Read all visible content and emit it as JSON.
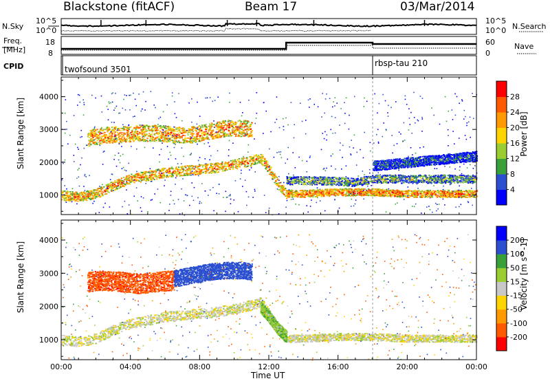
{
  "header": {
    "station": "Blackstone (fitACF)",
    "beam": "Beam 17",
    "date": "03/Mar/2014"
  },
  "top_strip": {
    "left_label": "N.Sky",
    "left_ticks": [
      "10^5",
      "10^0"
    ],
    "right_label": "N.Search",
    "right_ticks": [
      "10^5",
      "10^0"
    ]
  },
  "freq_strip": {
    "left_label_1": "Freq.",
    "left_label_2": "[MHz]",
    "left_ticks": [
      "18",
      "8"
    ],
    "right_label": "Nave",
    "right_ticks": [
      "60",
      "0"
    ]
  },
  "cpid": {
    "label": "CPID",
    "modes": [
      "twofsound 3501",
      "rbsp-tau 210"
    ]
  },
  "chart_data": [
    {
      "type": "heatmap",
      "panel": "power",
      "title": "",
      "ylabel": "Slant Range [km]",
      "ylim": [
        400,
        4600
      ],
      "yticks": [
        "1000",
        "2000",
        "3000",
        "4000"
      ],
      "xlim": [
        "00:00",
        "24:00"
      ],
      "colorbar_label": "Power [dB]",
      "colorbar_ticks": [
        "4",
        "8",
        "12",
        "16",
        "20",
        "24",
        "28"
      ],
      "colorbar_range": [
        0,
        32
      ],
      "colorbar_colors": [
        "#0000ff",
        "#2b4fd0",
        "#3aa03a",
        "#9acd32",
        "#ffd400",
        "#ff9a00",
        "#ff5a00",
        "#ff0000"
      ],
      "bands": [
        {
          "x": [
            0.0,
            1.0,
            2.0,
            3.0,
            4.0,
            5.0,
            6.0,
            7.0,
            8.0,
            9.0,
            10.0,
            11.0,
            11.5,
            12.0,
            12.5,
            13.0
          ],
          "y": [
            1000,
            950,
            1050,
            1300,
            1500,
            1600,
            1700,
            1750,
            1800,
            1850,
            1950,
            2050,
            2150,
            1800,
            1350,
            1050
          ],
          "width": 300,
          "value": 22
        },
        {
          "x": [
            13.0,
            14.0,
            16.0,
            18.0,
            20.0,
            22.0,
            24.0
          ],
          "y": [
            1050,
            1050,
            1100,
            1100,
            1050,
            1050,
            1050
          ],
          "width": 220,
          "value": 24
        },
        {
          "x": [
            1.5,
            2.5,
            3.5,
            4.5,
            5.5,
            6.5,
            7.5,
            8.5,
            9.5,
            10.5,
            11.0
          ],
          "y": [
            2750,
            2850,
            2850,
            2900,
            2900,
            2850,
            2850,
            2950,
            3050,
            3050,
            3000
          ],
          "width": 500,
          "value": 23
        },
        {
          "x": [
            13.0,
            15.0,
            17.0,
            18.0,
            20.0,
            22.0,
            24.0
          ],
          "y": [
            1450,
            1450,
            1400,
            1500,
            1500,
            1500,
            1500
          ],
          "width": 250,
          "value": 12
        },
        {
          "x": [
            18.0,
            20.0,
            22.0,
            24.0
          ],
          "y": [
            1900,
            2000,
            2100,
            2200
          ],
          "width": 300,
          "value": 6
        }
      ]
    },
    {
      "type": "heatmap",
      "panel": "velocity",
      "title": "",
      "ylabel": "Slant Range [km]",
      "ylim": [
        400,
        4600
      ],
      "yticks": [
        "1000",
        "2000",
        "3000",
        "4000"
      ],
      "xlim": [
        "00:00",
        "24:00"
      ],
      "xticks": [
        "00:00",
        "04:00",
        "08:00",
        "12:00",
        "16:00",
        "20:00",
        "00:00"
      ],
      "xlabel": "Time UT",
      "colorbar_label": "Velocity [m s^-1]",
      "colorbar_ticks": [
        "-200",
        "-100",
        "-50",
        "-15",
        "15",
        "50",
        "100",
        "200"
      ],
      "colorbar_colors": [
        "#ff0000",
        "#ff5a00",
        "#ff9a00",
        "#ffd400",
        "#c8c8c8",
        "#9acd32",
        "#3aa03a",
        "#2b4fd0",
        "#0000ff"
      ],
      "bands": [
        {
          "x": [
            0.0,
            1.0,
            2.0,
            3.0,
            4.0,
            5.0,
            6.0,
            7.0,
            8.0,
            9.0,
            10.0,
            11.0,
            11.5,
            12.0,
            12.5,
            13.0
          ],
          "y": [
            1000,
            950,
            1050,
            1300,
            1500,
            1600,
            1700,
            1750,
            1800,
            1850,
            1950,
            2050,
            2150,
            1800,
            1350,
            1050
          ],
          "width": 300,
          "value": 0
        },
        {
          "x": [
            13.0,
            14.0,
            16.0,
            18.0,
            20.0,
            22.0,
            24.0
          ],
          "y": [
            1050,
            1050,
            1100,
            1100,
            1050,
            1050,
            1050
          ],
          "width": 220,
          "value": 0
        },
        {
          "x": [
            1.5,
            2.5,
            3.5,
            4.5,
            5.5,
            6.5
          ],
          "y": [
            2750,
            2800,
            2750,
            2700,
            2750,
            2800
          ],
          "width": 600,
          "value": -180
        },
        {
          "x": [
            6.5,
            7.5,
            8.5,
            9.5,
            10.5,
            11.0
          ],
          "y": [
            2850,
            2950,
            3050,
            3100,
            3100,
            3050
          ],
          "width": 500,
          "value": 150
        },
        {
          "x": [
            11.5,
            12.0,
            12.5,
            13.0
          ],
          "y": [
            2000,
            1700,
            1350,
            1100
          ],
          "width": 350,
          "value": 40
        }
      ]
    }
  ]
}
